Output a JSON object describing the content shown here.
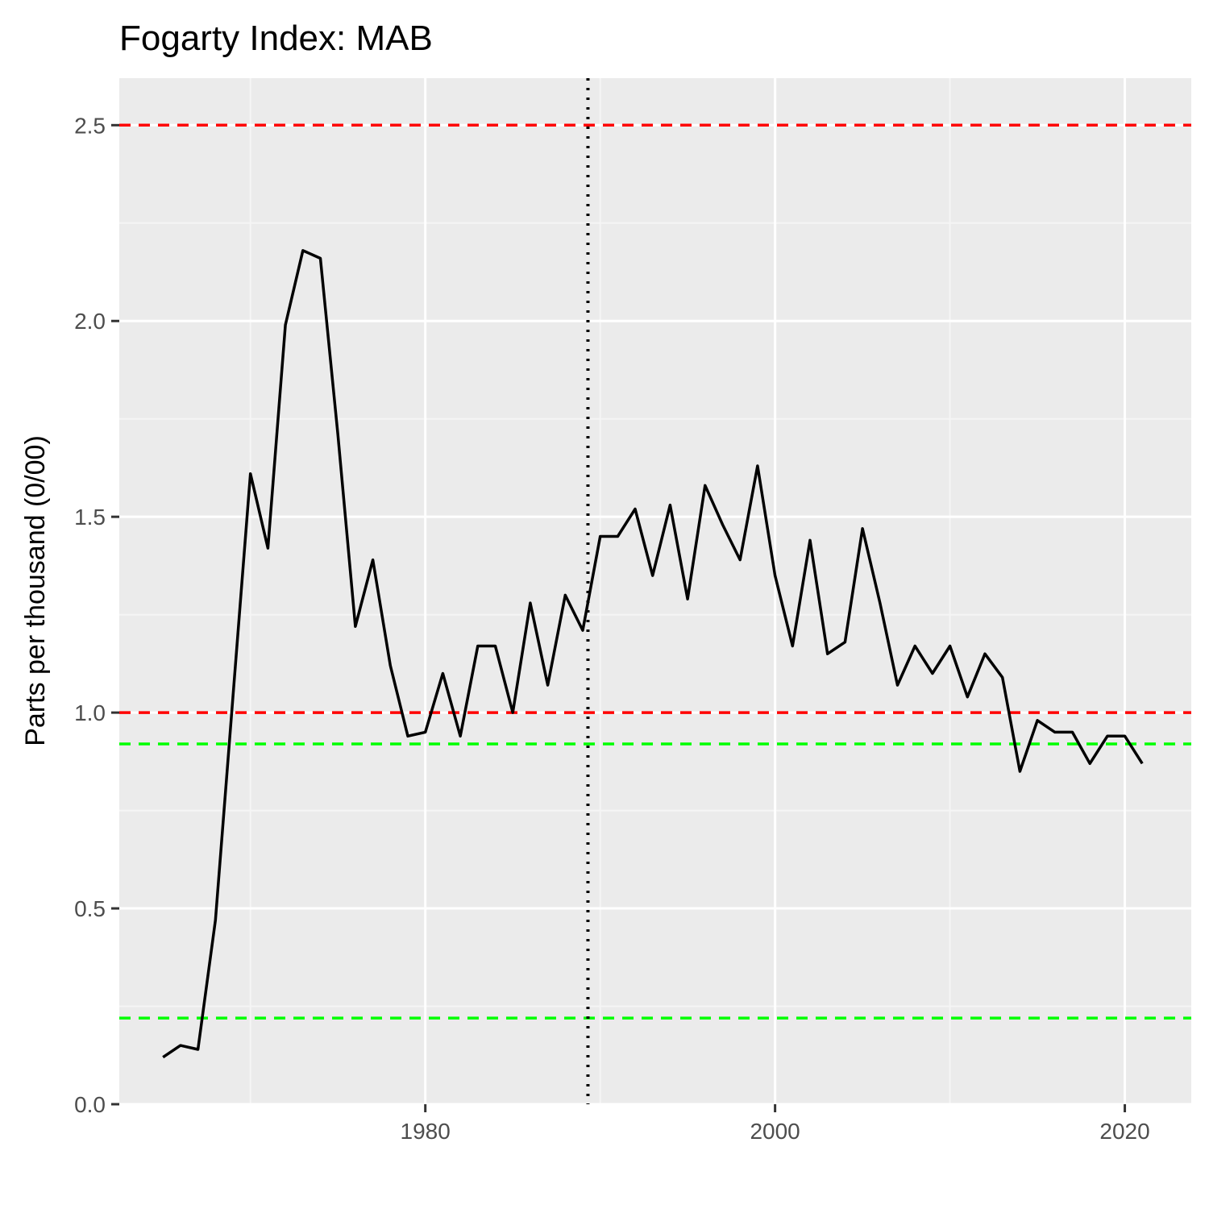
{
  "chart_data": {
    "type": "line",
    "title": "Fogarty Index: MAB",
    "xlabel": "",
    "ylabel": "Parts per thousand (0/00)",
    "xlim": [
      1962.5,
      2023.8
    ],
    "ylim": [
      0,
      2.62
    ],
    "x_ticks": [
      1980,
      2000,
      2020
    ],
    "y_ticks": [
      0.0,
      0.5,
      1.0,
      1.5,
      2.0,
      2.5
    ],
    "y_tick_labels": [
      "0.0",
      "0.5",
      "1.0",
      "1.5",
      "2.0",
      "2.5"
    ],
    "grid": true,
    "series": [
      {
        "color": "#000000",
        "x": [
          1965,
          1966,
          1967,
          1968,
          1969,
          1970,
          1971,
          1972,
          1973,
          1974,
          1975,
          1976,
          1977,
          1978,
          1979,
          1980,
          1981,
          1982,
          1983,
          1984,
          1985,
          1986,
          1987,
          1988,
          1989,
          1990,
          1991,
          1992,
          1993,
          1994,
          1995,
          1996,
          1997,
          1998,
          1999,
          2000,
          2001,
          2002,
          2003,
          2004,
          2005,
          2006,
          2007,
          2008,
          2009,
          2010,
          2011,
          2012,
          2013,
          2014,
          2015,
          2016,
          2017,
          2018,
          2019,
          2020,
          2021
        ],
        "y": [
          0.12,
          0.15,
          0.14,
          0.47,
          1.04,
          1.61,
          1.42,
          1.99,
          2.18,
          2.16,
          1.71,
          1.22,
          1.39,
          1.12,
          0.94,
          0.95,
          1.1,
          0.94,
          1.17,
          1.17,
          1.0,
          1.28,
          1.07,
          1.3,
          1.21,
          1.45,
          1.45,
          1.52,
          1.35,
          1.53,
          1.29,
          1.58,
          1.48,
          1.39,
          1.63,
          1.35,
          1.17,
          1.44,
          1.15,
          1.18,
          1.47,
          1.28,
          1.07,
          1.17,
          1.1,
          1.17,
          1.04,
          1.15,
          1.09,
          0.85,
          0.98,
          0.95,
          0.95,
          0.87,
          0.94,
          0.94,
          0.87
        ]
      }
    ],
    "reference_lines": [
      {
        "orientation": "horizontal",
        "value": 2.5,
        "color": "#ff0000",
        "style": "dashed"
      },
      {
        "orientation": "horizontal",
        "value": 1.0,
        "color": "#ff0000",
        "style": "dashed"
      },
      {
        "orientation": "horizontal",
        "value": 0.92,
        "color": "#00ff00",
        "style": "dashed"
      },
      {
        "orientation": "horizontal",
        "value": 0.22,
        "color": "#00ff00",
        "style": "dashed"
      },
      {
        "orientation": "vertical",
        "value": 1989.3,
        "color": "#000000",
        "style": "dotted"
      }
    ],
    "colors": {
      "panel_background": "#ebebeb",
      "grid_major": "#ffffff",
      "grid_minor": "#f5f5f5"
    }
  }
}
